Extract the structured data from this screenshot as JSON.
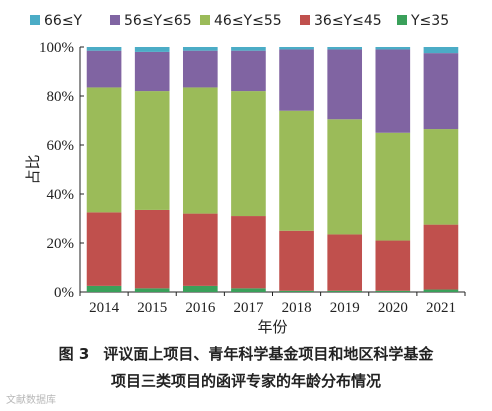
{
  "chart_data": {
    "type": "bar",
    "stacked": true,
    "percent": true,
    "categories": [
      "2014",
      "2015",
      "2016",
      "2017",
      "2018",
      "2019",
      "2020",
      "2021"
    ],
    "xlabel": "年份",
    "ylabel": "占比",
    "ylim": [
      0,
      100
    ],
    "yticks": [
      "0%",
      "20%",
      "40%",
      "60%",
      "80%",
      "100%"
    ],
    "legend_position": "top",
    "series": [
      {
        "name": "Y≤35",
        "color": "#3aa05a",
        "values": [
          2.5,
          1.5,
          2.5,
          1.5,
          0.5,
          0.5,
          0.5,
          1.0
        ]
      },
      {
        "name": "36≤Y≤45",
        "color": "#c0504d",
        "values": [
          30.0,
          32.0,
          29.5,
          29.5,
          24.5,
          23.0,
          20.5,
          26.5
        ]
      },
      {
        "name": "46≤Y≤55",
        "color": "#9bbb59",
        "values": [
          51.0,
          48.5,
          51.5,
          51.0,
          49.0,
          47.0,
          44.0,
          39.0
        ]
      },
      {
        "name": "56≤Y≤65",
        "color": "#8064a2",
        "values": [
          15.0,
          16.0,
          15.0,
          16.5,
          25.0,
          28.5,
          34.0,
          31.0
        ]
      },
      {
        "name": "66≤Y",
        "color": "#4bacc6",
        "values": [
          1.5,
          2.0,
          1.5,
          1.5,
          1.0,
          1.0,
          1.0,
          2.5
        ]
      }
    ]
  },
  "caption": {
    "label": "图 3",
    "line1": "评议面上项目、青年科学基金项目和地区科学基金",
    "line2": "项目三类项目的函评专家的年龄分布情况"
  },
  "watermark": "文献数据库"
}
